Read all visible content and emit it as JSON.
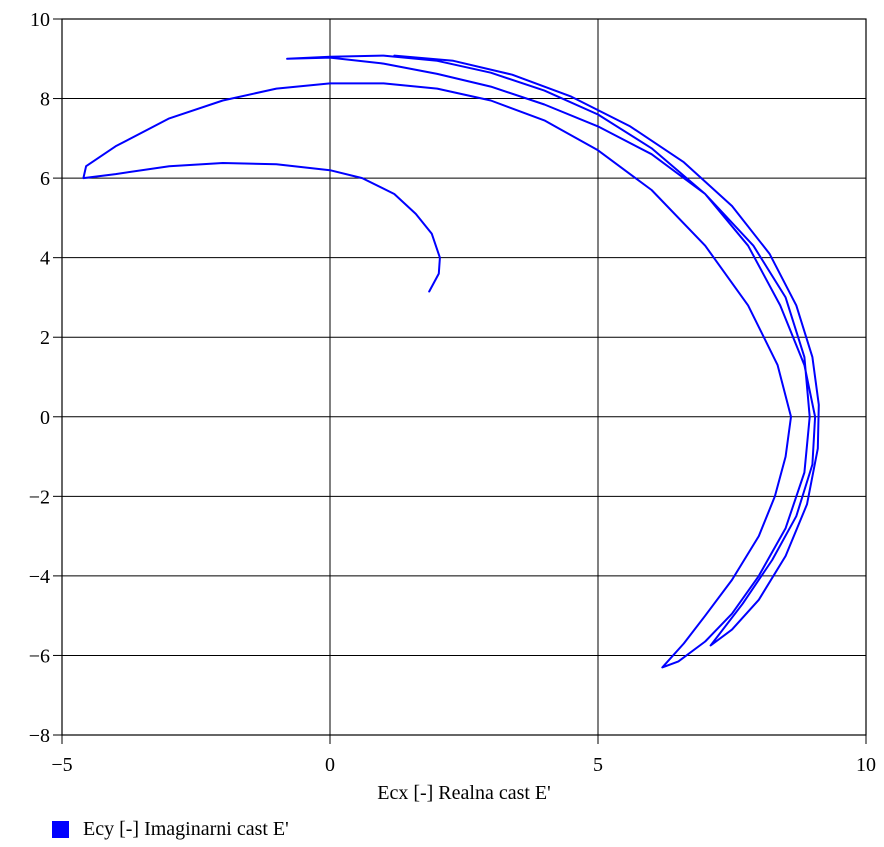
{
  "chart_data": {
    "type": "line",
    "xlabel": "Ecx [-] Realna cast E'",
    "xlim": [
      -5,
      10
    ],
    "ylim": [
      -8,
      10
    ],
    "x_ticks": [
      -5,
      0,
      5,
      10
    ],
    "y_ticks": [
      -8,
      -6,
      -4,
      -2,
      0,
      2,
      4,
      6,
      8,
      10
    ],
    "x_tick_labels": [
      "−5",
      "0",
      "5",
      "10"
    ],
    "y_tick_labels": [
      "−8",
      "−6",
      "−4",
      "−2",
      "0",
      "2",
      "4",
      "6",
      "8",
      "10"
    ],
    "grid": true,
    "legend_position": "bottom-left",
    "series": [
      {
        "name": "Ecy [-] Imaginarni cast E'",
        "color": "#0000ff",
        "points": [
          [
            1.85,
            3.15
          ],
          [
            2.03,
            3.6
          ],
          [
            2.05,
            4.0
          ],
          [
            1.9,
            4.6
          ],
          [
            1.6,
            5.1
          ],
          [
            1.2,
            5.6
          ],
          [
            0.6,
            6.0
          ],
          [
            0.0,
            6.2
          ],
          [
            -1.0,
            6.35
          ],
          [
            -2.0,
            6.38
          ],
          [
            -3.0,
            6.3
          ],
          [
            -4.0,
            6.1
          ],
          [
            -4.6,
            6.0
          ],
          [
            -4.55,
            6.3
          ],
          [
            -4.0,
            6.8
          ],
          [
            -3.0,
            7.5
          ],
          [
            -2.0,
            7.95
          ],
          [
            -1.0,
            8.25
          ],
          [
            0.0,
            8.38
          ],
          [
            1.0,
            8.38
          ],
          [
            2.0,
            8.25
          ],
          [
            3.0,
            7.95
          ],
          [
            4.0,
            7.45
          ],
          [
            5.0,
            6.7
          ],
          [
            6.0,
            5.7
          ],
          [
            7.0,
            4.3
          ],
          [
            7.8,
            2.8
          ],
          [
            8.35,
            1.3
          ],
          [
            8.6,
            0.0
          ],
          [
            8.5,
            -1.0
          ],
          [
            8.3,
            -2.0
          ],
          [
            8.0,
            -3.0
          ],
          [
            7.5,
            -4.1
          ],
          [
            7.0,
            -5.0
          ],
          [
            6.6,
            -5.7
          ],
          [
            6.2,
            -6.3
          ],
          [
            6.5,
            -6.15
          ],
          [
            7.0,
            -5.65
          ],
          [
            7.5,
            -4.95
          ],
          [
            8.0,
            -4.0
          ],
          [
            8.5,
            -2.8
          ],
          [
            8.85,
            -1.4
          ],
          [
            8.95,
            0.0
          ],
          [
            8.85,
            1.5
          ],
          [
            8.5,
            3.0
          ],
          [
            7.9,
            4.3
          ],
          [
            7.0,
            5.6
          ],
          [
            6.0,
            6.6
          ],
          [
            5.0,
            7.3
          ],
          [
            4.0,
            7.85
          ],
          [
            3.0,
            8.3
          ],
          [
            2.0,
            8.62
          ],
          [
            1.0,
            8.88
          ],
          [
            0.0,
            9.03
          ],
          [
            -0.8,
            9.0
          ],
          [
            0.0,
            9.05
          ],
          [
            1.0,
            9.08
          ],
          [
            2.0,
            8.95
          ],
          [
            3.0,
            8.65
          ],
          [
            4.0,
            8.2
          ],
          [
            5.0,
            7.6
          ],
          [
            6.0,
            6.75
          ],
          [
            7.0,
            5.6
          ],
          [
            7.8,
            4.3
          ],
          [
            8.4,
            2.8
          ],
          [
            8.85,
            1.3
          ],
          [
            9.05,
            0.0
          ],
          [
            9.0,
            -1.2
          ],
          [
            8.7,
            -2.5
          ],
          [
            8.25,
            -3.6
          ],
          [
            7.7,
            -4.7
          ],
          [
            7.1,
            -5.75
          ],
          [
            7.5,
            -5.35
          ],
          [
            8.0,
            -4.6
          ],
          [
            8.5,
            -3.5
          ],
          [
            8.9,
            -2.2
          ],
          [
            9.1,
            -0.8
          ],
          [
            9.12,
            0.3
          ],
          [
            9.0,
            1.5
          ],
          [
            8.7,
            2.8
          ],
          [
            8.2,
            4.1
          ],
          [
            7.5,
            5.3
          ],
          [
            6.6,
            6.4
          ],
          [
            5.6,
            7.3
          ],
          [
            4.5,
            8.05
          ],
          [
            3.4,
            8.6
          ],
          [
            2.3,
            8.95
          ],
          [
            1.2,
            9.08
          ]
        ]
      }
    ]
  }
}
